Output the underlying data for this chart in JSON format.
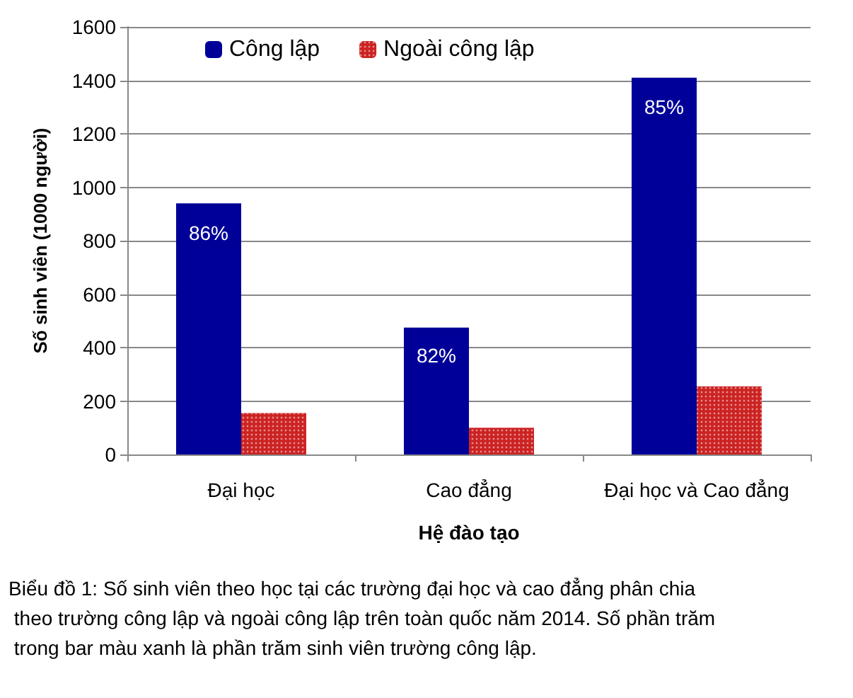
{
  "chart_data": {
    "type": "bar",
    "xlabel": "Hệ đào tạo",
    "ylabel": "Số sinh viên (1000 người)",
    "categories": [
      "Đại học",
      "Cao đẳng",
      "Đại học và Cao đẳng"
    ],
    "series": [
      {
        "name": "Công lập",
        "color": "#000099",
        "values": [
          940,
          475,
          1410
        ]
      },
      {
        "name": "Ngoài công lập",
        "color": "#cc2222",
        "values": [
          155,
          100,
          255
        ]
      }
    ],
    "ylim": [
      0,
      1600
    ],
    "yticks": [
      0,
      200,
      400,
      600,
      800,
      1000,
      1200,
      1400,
      1600
    ],
    "grid": "y",
    "legend": "top left",
    "annotations": [
      {
        "text": "86%",
        "x": "Đại học",
        "y": 830
      },
      {
        "text": "82%",
        "x": "Cao đẳng",
        "y": 370
      },
      {
        "text": "85%",
        "x": "Đại học và Cao đẳng",
        "y": 1300
      },
      "Biểu đồ 1: Số sinh viên theo học tại các trường đại học và cao đẳng phân chia theo trường công lập và ngoài công lập trên toàn quốc năm 2014. Số phần trăm trong bar màu xanh là phần trăm sinh viên trường công lập."
    ]
  }
}
